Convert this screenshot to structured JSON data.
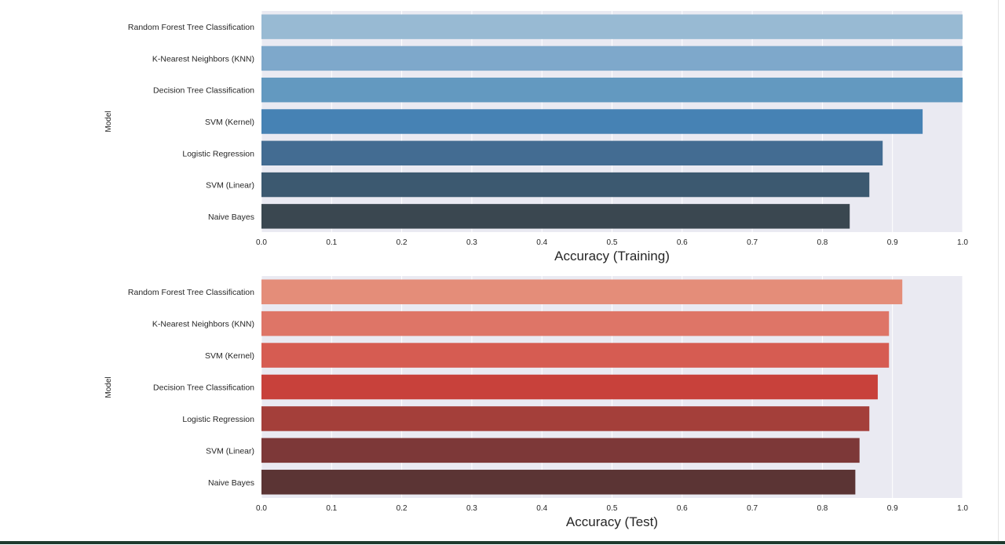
{
  "chart_data": [
    {
      "type": "bar",
      "orientation": "horizontal",
      "xlabel": "Accuracy (Training)",
      "ylabel": "Model",
      "xlim": [
        0,
        1.0
      ],
      "xticks": [
        "0.0",
        "0.1",
        "0.2",
        "0.3",
        "0.4",
        "0.5",
        "0.6",
        "0.7",
        "0.8",
        "0.9",
        "1.0"
      ],
      "grid": true,
      "categories": [
        "Random Forest Tree Classification",
        "K-Nearest Neighbors (KNN)",
        "Decision Tree Classification",
        "SVM (Kernel)",
        "Logistic Regression",
        "SVM (Linear)",
        "Naive Bayes"
      ],
      "values": [
        1.0,
        1.0,
        1.0,
        0.943,
        0.886,
        0.867,
        0.839
      ],
      "colors": [
        "#98bad3",
        "#7ea8cb",
        "#6399c0",
        "#4682b4",
        "#436c92",
        "#3c5970",
        "#3a4750"
      ]
    },
    {
      "type": "bar",
      "orientation": "horizontal",
      "xlabel": "Accuracy (Test)",
      "ylabel": "Model",
      "xlim": [
        0,
        1.0
      ],
      "xticks": [
        "0.0",
        "0.1",
        "0.2",
        "0.3",
        "0.4",
        "0.5",
        "0.6",
        "0.7",
        "0.8",
        "0.9",
        "1.0"
      ],
      "grid": true,
      "categories": [
        "Random Forest Tree Classification",
        "K-Nearest Neighbors (KNN)",
        "SVM (Kernel)",
        "Decision Tree Classification",
        "Logistic Regression",
        "SVM (Linear)",
        "Naive Bayes"
      ],
      "values": [
        0.914,
        0.895,
        0.895,
        0.879,
        0.867,
        0.853,
        0.847
      ],
      "colors": [
        "#e48d79",
        "#de7567",
        "#d65c52",
        "#c8413b",
        "#a43f3a",
        "#7d3838",
        "#5b3434"
      ]
    }
  ]
}
